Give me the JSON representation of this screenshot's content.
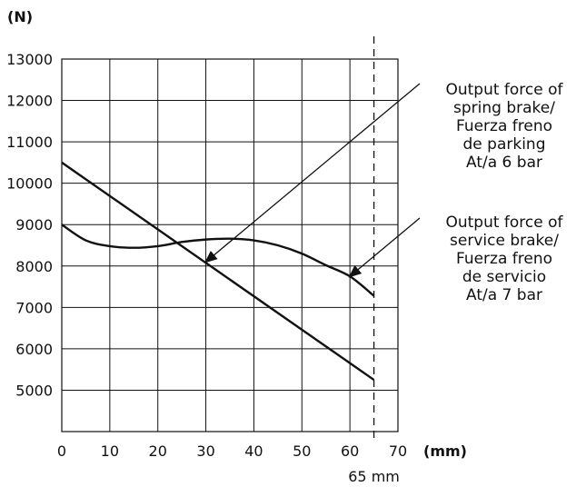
{
  "chart_data": {
    "type": "line",
    "ylabel": "(N)",
    "xlabel": "(mm)",
    "xlim": [
      0,
      70
    ],
    "ylim": [
      4000,
      13000
    ],
    "x_ticks": [
      "0",
      "10",
      "20",
      "30",
      "40",
      "50",
      "60",
      "70"
    ],
    "y_ticks": [
      "13000",
      "12000",
      "11000",
      "10000",
      "9000",
      "8000",
      "7000",
      "6000",
      "5000"
    ],
    "grid": true,
    "series": [
      {
        "name": "Output force of spring brake/ Fuerza freno de parking At/a 6 bar",
        "x": [
          0,
          65
        ],
        "y": [
          10500,
          5250
        ]
      },
      {
        "name": "Output force of service brake/ Fuerza freno de servicio At/a 7 bar",
        "x": [
          0,
          5,
          10,
          15,
          20,
          25,
          30,
          35,
          40,
          45,
          50,
          55,
          60,
          65
        ],
        "y": [
          9000,
          8620,
          8480,
          8440,
          8480,
          8580,
          8640,
          8660,
          8620,
          8500,
          8300,
          8020,
          7750,
          7280
        ]
      }
    ],
    "reference_line": {
      "x": 65,
      "label": "65 mm"
    },
    "annotations": [
      {
        "lines": [
          "Output force of",
          "spring brake/",
          "Fuerza freno",
          "de parking",
          "At/a 6 bar"
        ],
        "arrow_to": [
          30,
          8100
        ]
      },
      {
        "lines": [
          "Output force of",
          "service brake/",
          "Fuerza freno",
          "de servicio",
          "At/a 7 bar"
        ],
        "arrow_to": [
          60,
          7750
        ]
      }
    ]
  }
}
